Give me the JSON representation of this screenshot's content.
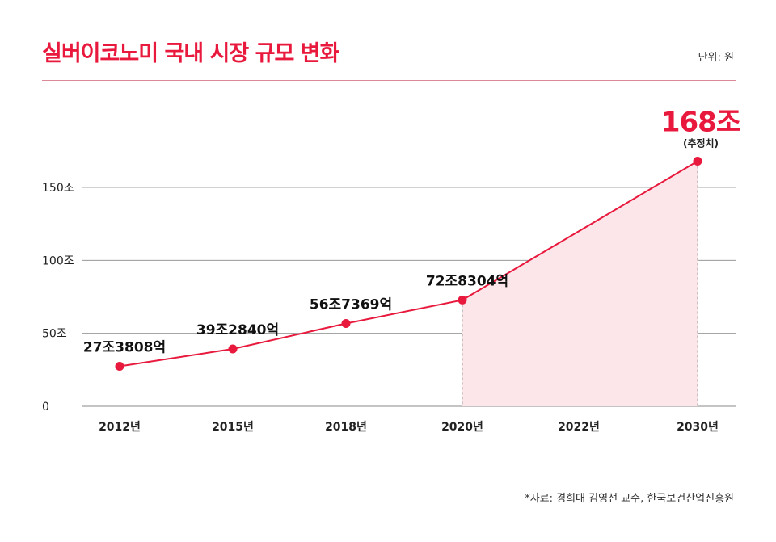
{
  "header": {
    "title": "실버이코노미 국내 시장 규모 변화",
    "unit": "단위: 원"
  },
  "footer": {
    "source": "*자료: 경희대 김영선 교수, 한국보건산업진흥원"
  },
  "colors": {
    "accent": "#e8193d",
    "area": "#fde6ea",
    "grid": "#888888"
  },
  "chart_data": {
    "type": "line",
    "title": "실버이코노미 국내 시장 규모 변화",
    "xlabel": "",
    "ylabel": "",
    "categories": [
      "2012년",
      "2015년",
      "2018년",
      "2020년",
      "2022년",
      "2030년"
    ],
    "series": [
      {
        "name": "국내 시장 규모",
        "points": [
          {
            "category": "2012년",
            "value": 27.3808,
            "label": "27조3808억"
          },
          {
            "category": "2015년",
            "value": 39.284,
            "label": "39조2840억"
          },
          {
            "category": "2018년",
            "value": 56.7369,
            "label": "56조7369억"
          },
          {
            "category": "2020년",
            "value": 72.8304,
            "label": "72조8304억"
          },
          {
            "category": "2030년",
            "value": 168,
            "label": "168조",
            "note": "(추정치)"
          }
        ]
      }
    ],
    "yticks": [
      {
        "value": 0,
        "label": "0"
      },
      {
        "value": 50,
        "label": "50조"
      },
      {
        "value": 100,
        "label": "100조"
      },
      {
        "value": 150,
        "label": "150조"
      }
    ],
    "ylim": [
      0,
      150
    ],
    "shaded_range": [
      "2020년",
      "2030년"
    ],
    "grid": true
  }
}
